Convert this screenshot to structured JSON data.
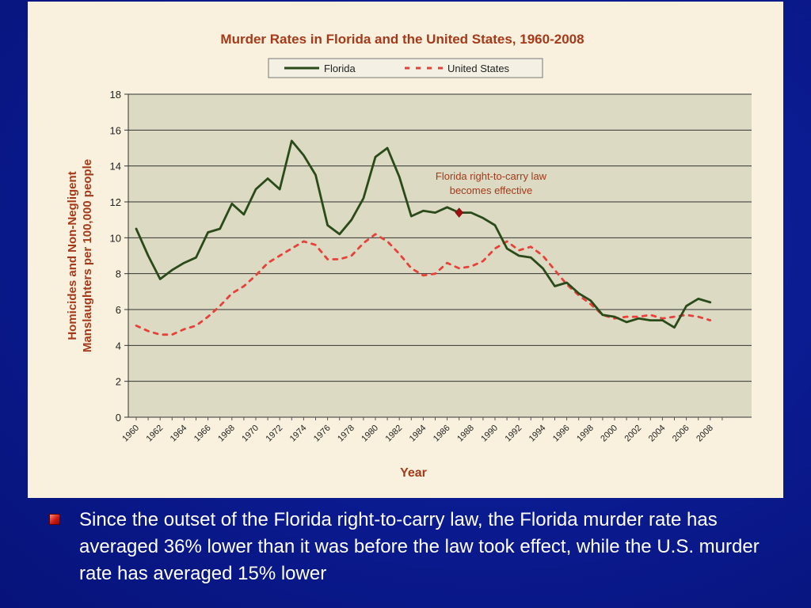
{
  "slide": {
    "bullet_text": "Since the outset of the Florida right-to-carry law, the Florida murder rate has averaged 36% lower than it was before the law took effect, while the U.S. murder rate has averaged 15% lower"
  },
  "colors": {
    "background": "#0b1c93",
    "panel": "#f9f1dd",
    "plot": "#dcdac3",
    "florida": "#2a4a1a",
    "united_states": "#e8413a",
    "title": "#a53a1a",
    "marker": "#a01010"
  },
  "chart_data": {
    "type": "line",
    "title": "Murder Rates in Florida and the United States, 1960-2008",
    "xlabel": "Year",
    "ylabel_line1": "Homicides and Non-Negligent",
    "ylabel_line2": "Manslaughters per 100,000 people",
    "ylim": [
      0,
      18
    ],
    "yticks": [
      0,
      2,
      4,
      6,
      8,
      10,
      12,
      14,
      16,
      18
    ],
    "xlim": [
      1960,
      2009
    ],
    "xticks": [
      "1960",
      "1962",
      "1964",
      "1966",
      "1968",
      "1970",
      "1972",
      "1974",
      "1976",
      "1978",
      "1980",
      "1982",
      "1984",
      "1986",
      "1988",
      "1990",
      "1992",
      "1994",
      "1996",
      "1998",
      "2000",
      "2002",
      "2004",
      "2006",
      "2008"
    ],
    "grid": "horizontal",
    "legend_position": "top",
    "series": [
      {
        "name": "Florida",
        "style": "solid",
        "points": [
          [
            1960,
            10.5
          ],
          [
            1961,
            9.0
          ],
          [
            1962,
            7.7
          ],
          [
            1963,
            8.2
          ],
          [
            1964,
            8.6
          ],
          [
            1965,
            8.9
          ],
          [
            1966,
            10.3
          ],
          [
            1967,
            10.5
          ],
          [
            1968,
            11.9
          ],
          [
            1969,
            11.3
          ],
          [
            1970,
            12.7
          ],
          [
            1971,
            13.3
          ],
          [
            1972,
            12.7
          ],
          [
            1973,
            15.4
          ],
          [
            1974,
            14.6
          ],
          [
            1975,
            13.5
          ],
          [
            1976,
            10.7
          ],
          [
            1977,
            10.2
          ],
          [
            1978,
            11.0
          ],
          [
            1979,
            12.2
          ],
          [
            1980,
            14.5
          ],
          [
            1981,
            15.0
          ],
          [
            1982,
            13.4
          ],
          [
            1983,
            11.2
          ],
          [
            1984,
            11.5
          ],
          [
            1985,
            11.4
          ],
          [
            1986,
            11.7
          ],
          [
            1987,
            11.4
          ],
          [
            1988,
            11.4
          ],
          [
            1989,
            11.1
          ],
          [
            1990,
            10.7
          ],
          [
            1991,
            9.4
          ],
          [
            1992,
            9.0
          ],
          [
            1993,
            8.9
          ],
          [
            1994,
            8.3
          ],
          [
            1995,
            7.3
          ],
          [
            1996,
            7.5
          ],
          [
            1997,
            6.9
          ],
          [
            1998,
            6.5
          ],
          [
            1999,
            5.7
          ],
          [
            2000,
            5.6
          ],
          [
            2001,
            5.3
          ],
          [
            2002,
            5.5
          ],
          [
            2003,
            5.4
          ],
          [
            2004,
            5.4
          ],
          [
            2005,
            5.0
          ],
          [
            2006,
            6.2
          ],
          [
            2007,
            6.6
          ],
          [
            2008,
            6.4
          ]
        ]
      },
      {
        "name": "United States",
        "style": "dashed",
        "points": [
          [
            1960,
            5.1
          ],
          [
            1961,
            4.8
          ],
          [
            1962,
            4.6
          ],
          [
            1963,
            4.6
          ],
          [
            1964,
            4.9
          ],
          [
            1965,
            5.1
          ],
          [
            1966,
            5.6
          ],
          [
            1967,
            6.2
          ],
          [
            1968,
            6.9
          ],
          [
            1969,
            7.3
          ],
          [
            1970,
            7.9
          ],
          [
            1971,
            8.6
          ],
          [
            1972,
            9.0
          ],
          [
            1973,
            9.4
          ],
          [
            1974,
            9.8
          ],
          [
            1975,
            9.6
          ],
          [
            1976,
            8.8
          ],
          [
            1977,
            8.8
          ],
          [
            1978,
            9.0
          ],
          [
            1979,
            9.7
          ],
          [
            1980,
            10.2
          ],
          [
            1981,
            9.8
          ],
          [
            1982,
            9.1
          ],
          [
            1983,
            8.3
          ],
          [
            1984,
            7.9
          ],
          [
            1985,
            8.0
          ],
          [
            1986,
            8.6
          ],
          [
            1987,
            8.3
          ],
          [
            1988,
            8.4
          ],
          [
            1989,
            8.7
          ],
          [
            1990,
            9.4
          ],
          [
            1991,
            9.8
          ],
          [
            1992,
            9.3
          ],
          [
            1993,
            9.5
          ],
          [
            1994,
            9.0
          ],
          [
            1995,
            8.2
          ],
          [
            1996,
            7.4
          ],
          [
            1997,
            6.8
          ],
          [
            1998,
            6.3
          ],
          [
            1999,
            5.7
          ],
          [
            2000,
            5.5
          ],
          [
            2001,
            5.6
          ],
          [
            2002,
            5.6
          ],
          [
            2003,
            5.7
          ],
          [
            2004,
            5.5
          ],
          [
            2005,
            5.6
          ],
          [
            2006,
            5.7
          ],
          [
            2007,
            5.6
          ],
          [
            2008,
            5.4
          ]
        ]
      }
    ],
    "annotation": {
      "line1": "Florida right-to-carry law",
      "line2": "becomes effective",
      "x": 1987,
      "y": 11.4
    }
  }
}
